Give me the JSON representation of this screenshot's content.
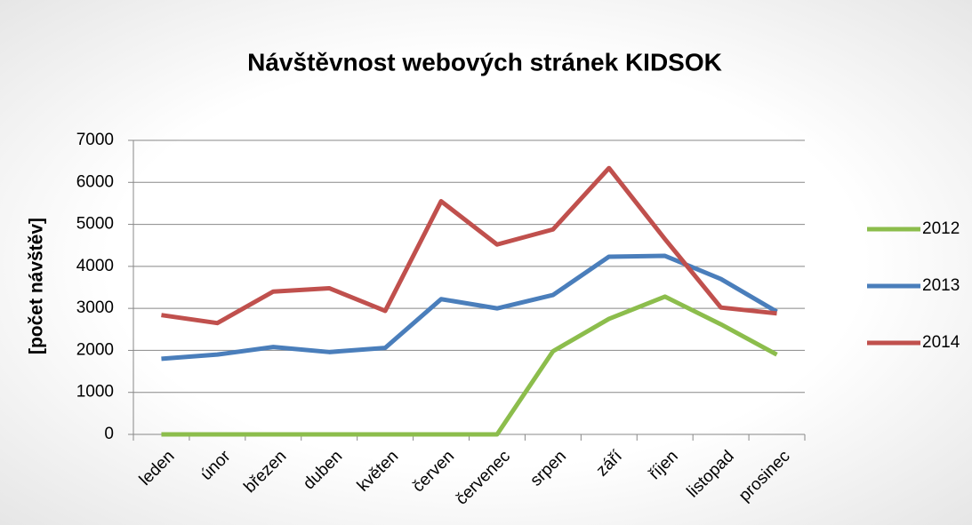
{
  "chart_data": {
    "type": "line",
    "title": "Návštěvnost webových stránek KIDSOK",
    "y_label": "[počet návštěv]",
    "categories": [
      "leden",
      "únor",
      "březen",
      "duben",
      "květen",
      "červen",
      "červenec",
      "srpen",
      "září",
      "říjen",
      "listopad",
      "prosinec"
    ],
    "series": [
      {
        "name": "2012",
        "color": "#8cbd4c",
        "values": [
          0,
          0,
          0,
          0,
          0,
          0,
          0,
          1980,
          2750,
          3280,
          2620,
          1900
        ]
      },
      {
        "name": "2013",
        "color": "#4a7ebb",
        "values": [
          1800,
          1900,
          2080,
          1960,
          2060,
          3220,
          3000,
          3320,
          4230,
          4250,
          3700,
          2920
        ]
      },
      {
        "name": "2014",
        "color": "#c0504d",
        "values": [
          2840,
          2650,
          3400,
          3480,
          2940,
          5550,
          4520,
          4880,
          6340,
          4650,
          3020,
          2880
        ]
      }
    ],
    "ylim": [
      0,
      7000
    ],
    "yticks": [
      0,
      1000,
      2000,
      3000,
      4000,
      5000,
      6000,
      7000
    ],
    "grid": true,
    "legend": "right"
  }
}
